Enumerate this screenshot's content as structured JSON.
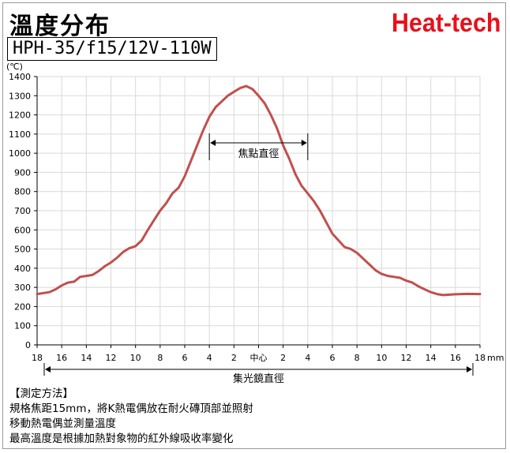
{
  "header": {
    "title": "溫度分布",
    "brand": "Heat-tech",
    "model": "HPH-35/f15/12V-110W"
  },
  "colors": {
    "curve": "#c0504d",
    "brand": "#e8101a",
    "grid": "#d9d9d9"
  },
  "chart_data": {
    "type": "line",
    "title": "",
    "ylabel": "(℃)",
    "xlabel": "集光鏡直徑",
    "x_unit": "mm",
    "ylim": [
      0,
      1400
    ],
    "y_ticks": [
      0,
      100,
      200,
      300,
      400,
      500,
      600,
      700,
      800,
      900,
      1000,
      1100,
      1200,
      1300,
      1400
    ],
    "x_tick_labels": [
      "18",
      "16",
      "14",
      "12",
      "10",
      "8",
      "6",
      "4",
      "2",
      "中心",
      "2",
      "4",
      "6",
      "8",
      "10",
      "12",
      "14",
      "16",
      "18"
    ],
    "xlim": [
      -18,
      18
    ],
    "grid": true,
    "series": [
      {
        "x": [
          -18,
          -17,
          -16.5,
          -16,
          -15.5,
          -15,
          -14.5,
          -14,
          -13.5,
          -13,
          -12.5,
          -12,
          -11.5,
          -11,
          -10.5,
          -10,
          -9.5,
          -9,
          -8.5,
          -8,
          -7.5,
          -7,
          -6.5,
          -6,
          -5.5,
          -5,
          -4.5,
          -4,
          -3.5,
          -3,
          -2.5,
          -2,
          -1.5,
          -1,
          -0.5,
          0,
          0.5,
          1,
          1.5,
          2,
          2.5,
          3,
          3.5,
          4,
          4.5,
          5,
          5.5,
          6,
          6.5,
          7,
          7.5,
          8,
          8.5,
          9,
          9.5,
          10,
          10.5,
          11,
          11.5,
          12,
          12.5,
          13,
          13.5,
          14,
          14.5,
          15,
          15.5,
          16,
          16.5,
          17,
          18
        ],
        "values": [
          265,
          275,
          290,
          310,
          325,
          330,
          355,
          360,
          365,
          385,
          410,
          430,
          455,
          485,
          505,
          515,
          545,
          600,
          650,
          700,
          740,
          790,
          820,
          880,
          960,
          1040,
          1120,
          1190,
          1240,
          1270,
          1300,
          1320,
          1340,
          1350,
          1335,
          1300,
          1260,
          1200,
          1130,
          1040,
          970,
          890,
          830,
          790,
          750,
          700,
          640,
          580,
          545,
          510,
          500,
          480,
          450,
          420,
          390,
          370,
          360,
          355,
          350,
          335,
          325,
          305,
          290,
          275,
          265,
          260,
          262,
          264,
          265,
          266,
          265
        ]
      }
    ],
    "annotations": {
      "focal_label": "焦點直徑",
      "focal_range": [
        -4,
        4
      ],
      "mirror_label": "集光鏡直徑",
      "mirror_range": [
        -18,
        18
      ]
    }
  },
  "notes": {
    "heading": "【測定方法】",
    "lines": [
      "規格焦距15mm，將K熱電偶放在耐火磚頂部並照射",
      "移動熱電偶並測量溫度",
      "最高溫度是根據加熱對象物的紅外線吸收率變化"
    ]
  }
}
